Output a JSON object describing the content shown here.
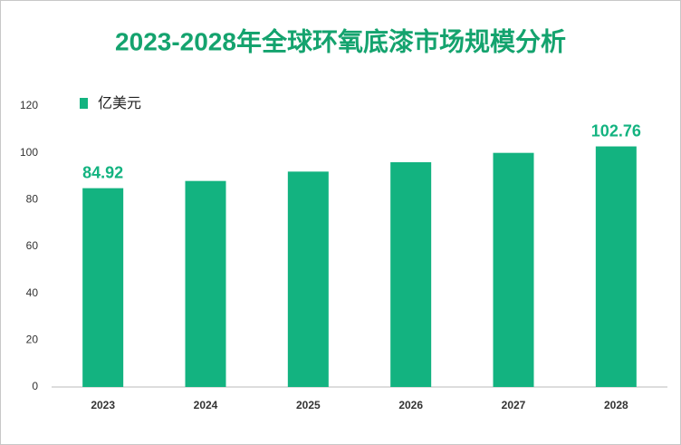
{
  "chart_data": {
    "type": "bar",
    "title": "2023-2028年全球环氧底漆市场规模分析",
    "categories": [
      "2023",
      "2024",
      "2025",
      "2026",
      "2027",
      "2028"
    ],
    "series": [
      {
        "name": "亿美元",
        "color": "#13b380",
        "values": [
          84.92,
          88,
          92,
          96,
          100,
          102.76
        ],
        "value_labels": [
          "84.92",
          null,
          null,
          null,
          null,
          "102.76"
        ]
      }
    ],
    "ylim": [
      0,
      120
    ],
    "yticks": [
      0,
      20,
      40,
      60,
      80,
      100,
      120
    ],
    "grid": false,
    "legend": "top-left"
  }
}
